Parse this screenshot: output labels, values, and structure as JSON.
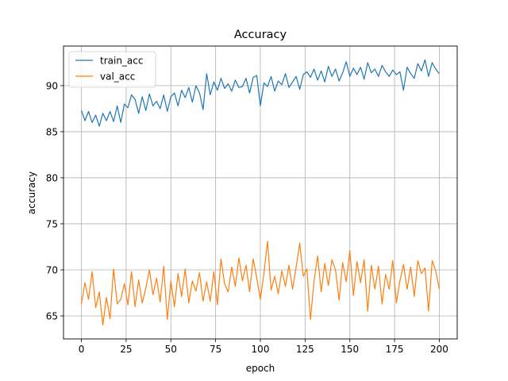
{
  "chart_data": {
    "type": "line",
    "title": "Accuracy",
    "xlabel": "epoch",
    "ylabel": "accuracy",
    "xlim": [
      -10,
      210
    ],
    "ylim": [
      62.5,
      94.3
    ],
    "xticks": [
      0,
      25,
      50,
      75,
      100,
      125,
      150,
      175,
      200
    ],
    "yticks": [
      65,
      70,
      75,
      80,
      85,
      90
    ],
    "grid": true,
    "legend_position": "top-left",
    "series": [
      {
        "name": "train_acc",
        "color": "#1f77b4",
        "x": [
          0,
          2,
          4,
          6,
          8,
          10,
          12,
          14,
          16,
          18,
          20,
          22,
          24,
          26,
          28,
          30,
          32,
          34,
          36,
          38,
          40,
          42,
          44,
          46,
          48,
          50,
          52,
          54,
          56,
          58,
          60,
          62,
          64,
          66,
          68,
          70,
          72,
          74,
          76,
          78,
          80,
          82,
          84,
          86,
          88,
          90,
          92,
          94,
          96,
          98,
          100,
          102,
          104,
          106,
          108,
          110,
          112,
          114,
          116,
          118,
          120,
          122,
          124,
          126,
          128,
          130,
          132,
          134,
          136,
          138,
          140,
          142,
          144,
          146,
          148,
          150,
          152,
          154,
          156,
          158,
          160,
          162,
          164,
          166,
          168,
          170,
          172,
          174,
          176,
          178,
          180,
          182,
          184,
          186,
          188,
          190,
          192,
          194,
          196,
          198,
          200
        ],
        "y": [
          87.3,
          86.2,
          87.2,
          86.0,
          86.8,
          85.6,
          87.0,
          86.2,
          87.2,
          86.1,
          87.8,
          86.0,
          88.0,
          87.6,
          89.0,
          88.5,
          87.0,
          88.8,
          87.3,
          89.1,
          87.8,
          88.3,
          87.5,
          89.0,
          87.2,
          88.8,
          89.2,
          87.8,
          89.5,
          88.7,
          89.8,
          88.2,
          90.0,
          89.2,
          87.4,
          91.3,
          89.0,
          90.4,
          89.5,
          90.8,
          89.7,
          90.2,
          89.4,
          90.6,
          89.8,
          89.9,
          90.8,
          89.2,
          90.9,
          91.1,
          87.8,
          90.3,
          89.9,
          91.0,
          89.4,
          90.5,
          90.1,
          91.3,
          89.8,
          90.4,
          91.0,
          89.6,
          91.2,
          91.5,
          90.9,
          91.8,
          90.6,
          91.6,
          90.4,
          92.1,
          91.0,
          91.8,
          90.5,
          91.4,
          92.6,
          91.0,
          91.9,
          91.2,
          92.0,
          90.7,
          92.5,
          91.4,
          91.8,
          91.0,
          92.2,
          91.5,
          91.0,
          91.7,
          91.2,
          91.5,
          89.5,
          92.0,
          91.3,
          90.8,
          92.4,
          91.6,
          92.8,
          91.0,
          92.5,
          91.8,
          91.3
        ]
      },
      {
        "name": "val_acc",
        "color": "#ff7f0e",
        "x": [
          0,
          2,
          4,
          6,
          8,
          10,
          12,
          14,
          16,
          18,
          20,
          22,
          24,
          26,
          28,
          30,
          32,
          34,
          36,
          38,
          40,
          42,
          44,
          46,
          48,
          50,
          52,
          54,
          56,
          58,
          60,
          62,
          64,
          66,
          68,
          70,
          72,
          74,
          76,
          78,
          80,
          82,
          84,
          86,
          88,
          90,
          92,
          94,
          96,
          98,
          100,
          102,
          104,
          106,
          108,
          110,
          112,
          114,
          116,
          118,
          120,
          122,
          124,
          126,
          128,
          130,
          132,
          134,
          136,
          138,
          140,
          142,
          144,
          146,
          148,
          150,
          152,
          154,
          156,
          158,
          160,
          162,
          164,
          166,
          168,
          170,
          172,
          174,
          176,
          178,
          180,
          182,
          184,
          186,
          188,
          190,
          192,
          194,
          196,
          198,
          200
        ],
        "y": [
          66.3,
          68.6,
          66.8,
          69.8,
          65.9,
          67.6,
          64.0,
          67.0,
          64.7,
          70.1,
          66.3,
          66.8,
          68.5,
          66.2,
          69.8,
          66.0,
          68.9,
          66.4,
          68.0,
          70.0,
          67.3,
          69.1,
          66.5,
          70.4,
          64.6,
          68.8,
          66.0,
          69.6,
          67.1,
          70.1,
          66.4,
          68.8,
          67.7,
          69.7,
          66.6,
          68.7,
          66.6,
          69.8,
          66.2,
          71.2,
          68.5,
          67.6,
          70.3,
          68.2,
          71.3,
          68.8,
          70.5,
          67.6,
          71.2,
          69.1,
          66.8,
          69.6,
          73.1,
          67.8,
          69.3,
          67.4,
          69.9,
          68.2,
          70.5,
          67.9,
          70.3,
          72.9,
          69.3,
          70.1,
          64.6,
          68.8,
          71.5,
          67.6,
          70.7,
          68.3,
          71.1,
          70.0,
          66.7,
          70.8,
          68.7,
          72.1,
          67.2,
          70.9,
          68.6,
          71.1,
          65.5,
          70.5,
          67.9,
          70.4,
          66.3,
          69.5,
          67.9,
          71.0,
          66.4,
          68.8,
          70.6,
          67.9,
          70.3,
          67.1,
          71.0,
          69.6,
          70.2,
          65.5,
          71.0,
          69.9,
          67.9
        ]
      }
    ]
  }
}
